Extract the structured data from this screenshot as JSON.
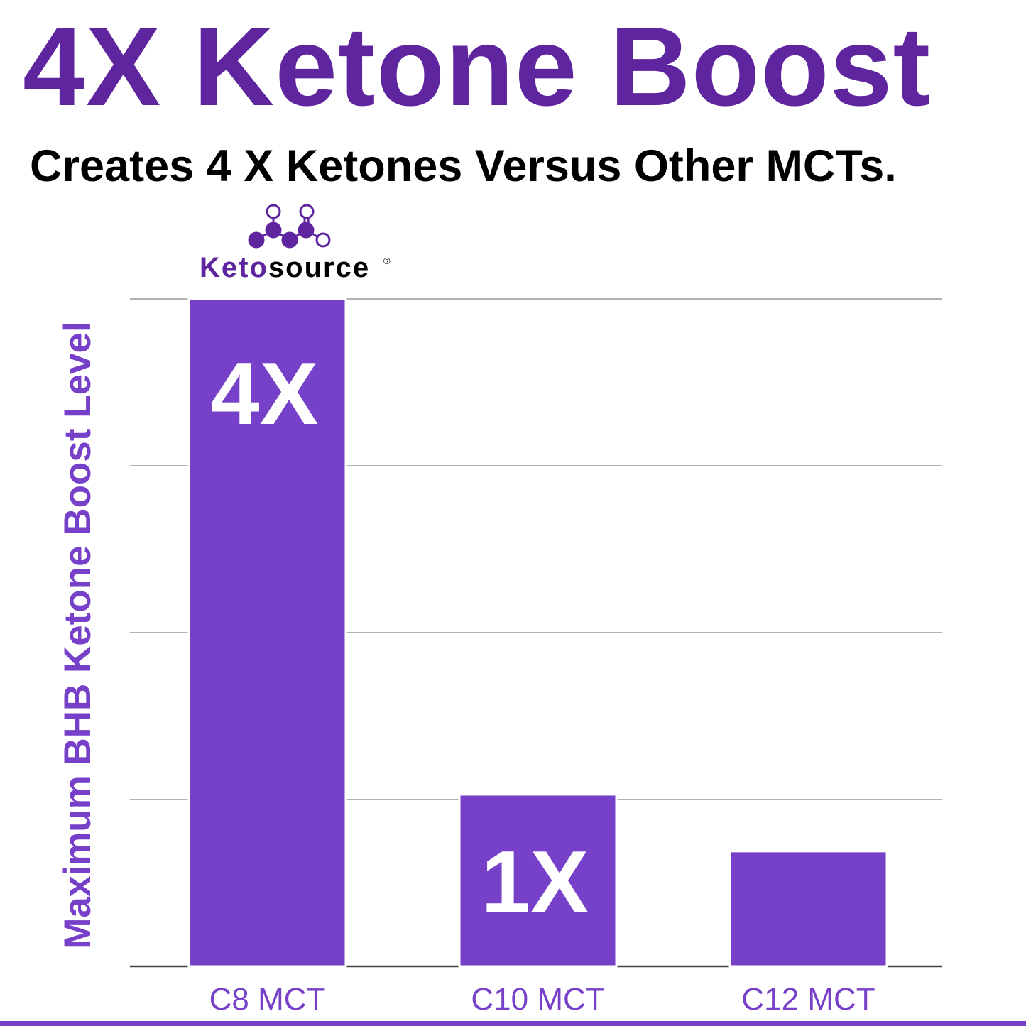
{
  "title": "4X Ketone Boost",
  "subtitle": "Creates 4 X Ketones Versus Other MCTs.",
  "logo": {
    "brand_part1": "Keto",
    "brand_part2": "source",
    "registered": "®",
    "color": "#5f259f"
  },
  "colors": {
    "title": "#5f259f",
    "bar": "#7740c8",
    "axis_text": "#7740c8",
    "grid": "#999999"
  },
  "chart_data": {
    "type": "bar",
    "title": "",
    "xlabel": "",
    "ylabel": "Maximum BHB Ketone Boost Level",
    "categories": [
      "C8 MCT",
      "C10 MCT",
      "C12 MCT"
    ],
    "values": [
      4.0,
      1.03,
      0.69
    ],
    "data_labels": [
      "4X",
      "1X",
      ""
    ],
    "ylim": [
      0,
      4
    ],
    "grid": true,
    "y_tick_labels_shown": false,
    "legend": "none"
  }
}
